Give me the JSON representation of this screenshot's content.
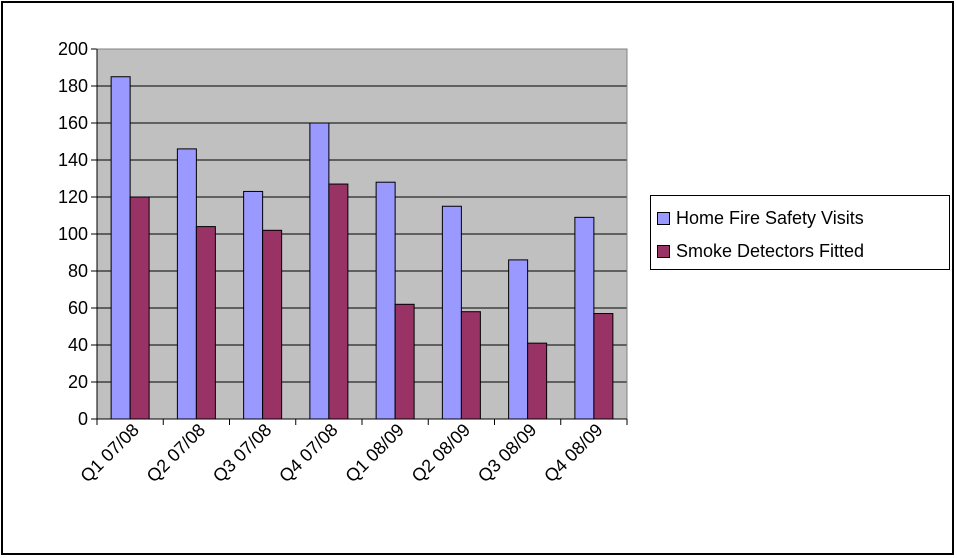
{
  "chart_data": {
    "type": "bar",
    "categories": [
      "Q1 07/08",
      "Q2 07/08",
      "Q3 07/08",
      "Q4 07/08",
      "Q1 08/09",
      "Q2 08/09",
      "Q3 08/09",
      "Q4 08/09"
    ],
    "series": [
      {
        "name": "Home Fire Safety Visits",
        "color": "#9999ff",
        "values": [
          185,
          146,
          123,
          160,
          128,
          115,
          86,
          109
        ]
      },
      {
        "name": "Smoke Detectors Fitted",
        "color": "#993366",
        "values": [
          120,
          104,
          102,
          127,
          62,
          58,
          41,
          57
        ]
      }
    ],
    "title": "",
    "xlabel": "",
    "ylabel": "",
    "ylim": [
      0,
      200
    ],
    "yticks": [
      0,
      20,
      40,
      60,
      80,
      100,
      120,
      140,
      160,
      180,
      200
    ],
    "grid": true,
    "plot_background": "#c0c0c0",
    "legend_position": "right"
  }
}
